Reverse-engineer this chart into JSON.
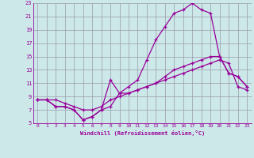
{
  "xlabel": "Windchill (Refroidissement éolien,°C)",
  "background_color": "#cce8e8",
  "line_color": "#990099",
  "grid_color": "#9999aa",
  "xlim": [
    -0.5,
    23.5
  ],
  "ylim": [
    5,
    23
  ],
  "xticks": [
    0,
    1,
    2,
    3,
    4,
    5,
    6,
    7,
    8,
    9,
    10,
    11,
    12,
    13,
    14,
    15,
    16,
    17,
    18,
    19,
    20,
    21,
    22,
    23
  ],
  "yticks": [
    5,
    7,
    9,
    11,
    13,
    15,
    17,
    19,
    21,
    23
  ],
  "line1_x": [
    0,
    1,
    2,
    3,
    4,
    5,
    6,
    7,
    8,
    9,
    10,
    11,
    12,
    13,
    14,
    15,
    16,
    17,
    18,
    19,
    20,
    21,
    22,
    23
  ],
  "line1_y": [
    8.5,
    8.5,
    7.5,
    7.5,
    7.0,
    5.5,
    6.0,
    7.0,
    7.5,
    9.5,
    10.5,
    11.5,
    14.5,
    17.5,
    19.5,
    21.5,
    22.0,
    23.0,
    22.0,
    21.5,
    15.0,
    12.5,
    12.0,
    10.5
  ],
  "line2_x": [
    0,
    1,
    2,
    3,
    4,
    5,
    6,
    7,
    8,
    9,
    10,
    11,
    12,
    13,
    14,
    15,
    16,
    17,
    18,
    19,
    20,
    21,
    22,
    23
  ],
  "line2_y": [
    8.5,
    8.5,
    7.5,
    7.5,
    7.0,
    5.5,
    6.0,
    7.0,
    11.5,
    9.5,
    9.5,
    10.0,
    10.5,
    11.0,
    12.0,
    13.0,
    13.5,
    14.0,
    14.5,
    15.0,
    15.0,
    12.5,
    12.0,
    10.5
  ],
  "line3_x": [
    0,
    1,
    2,
    3,
    4,
    5,
    6,
    7,
    8,
    9,
    10,
    11,
    12,
    13,
    14,
    15,
    16,
    17,
    18,
    19,
    20,
    21,
    22,
    23
  ],
  "line3_y": [
    8.5,
    8.5,
    8.5,
    8.0,
    7.5,
    7.0,
    7.0,
    7.5,
    8.5,
    9.0,
    9.5,
    10.0,
    10.5,
    11.0,
    11.5,
    12.0,
    12.5,
    13.0,
    13.5,
    14.0,
    14.5,
    14.0,
    10.5,
    10.0
  ]
}
